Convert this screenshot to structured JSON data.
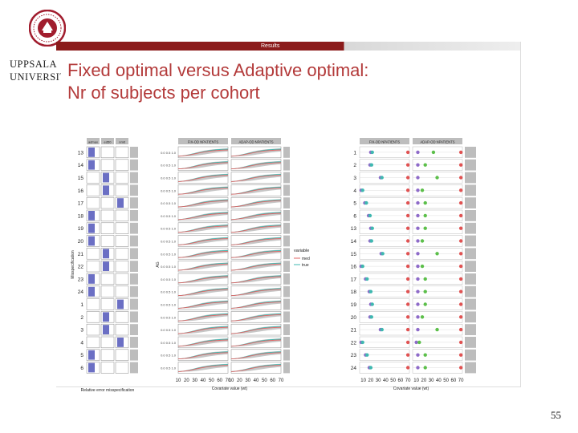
{
  "header": {
    "logo_line1": "UPPSALA",
    "logo_line2": "UNIVERSITET",
    "ribbon_label": "Results"
  },
  "slide": {
    "title_line1": "Fixed optimal versus Adaptive optimal:",
    "title_line2": "Nr of subjects per cohort",
    "page_number": "55"
  },
  "figure_left": {
    "row_labels": [
      "13",
      "14",
      "15",
      "16",
      "17",
      "18",
      "19",
      "20",
      "21",
      "22",
      "23",
      "24",
      "1",
      "2",
      "3",
      "4",
      "5",
      "6"
    ],
    "column_headers": [
      "admax",
      "ed50",
      "nmit"
    ],
    "ylabel": "Misspecification",
    "xlabel": "Relative error misspecification",
    "colors": {
      "bar": "#6b6fc4",
      "strip": "#bdbdbd",
      "panel": "#ffffff"
    }
  },
  "figure_middle": {
    "panel_headers": [
      "FIX-OD NPATIENTS",
      "ADAP-OD NPATIENTS"
    ],
    "xticks": [
      "10",
      "20",
      "30",
      "40",
      "50",
      "60",
      "70"
    ],
    "xlabel": "Covariate value (wt)",
    "ylabel": "AG",
    "legend": {
      "title": "variable",
      "items": [
        "med",
        "true"
      ]
    },
    "colors": {
      "med": "#e06666",
      "true": "#3fb8b0",
      "band": "#b8b8b8"
    }
  },
  "figure_right": {
    "panel_headers": [
      "FIX-OD NPATIENTS",
      "ADAP-OD NPATIENTS"
    ],
    "row_labels": [
      "1",
      "2",
      "3",
      "4",
      "5",
      "6",
      "13",
      "14",
      "15",
      "16",
      "17",
      "18",
      "19",
      "20",
      "21",
      "22",
      "23",
      "24"
    ],
    "xticks": [
      "10",
      "20",
      "30",
      "40",
      "50",
      "60",
      "70"
    ],
    "xlabel": "Covariate value (wt)",
    "colors": {
      "purple": "#8e6bc9",
      "teal": "#3fb8b0",
      "green": "#5cbf4a",
      "red": "#e05252"
    }
  }
}
